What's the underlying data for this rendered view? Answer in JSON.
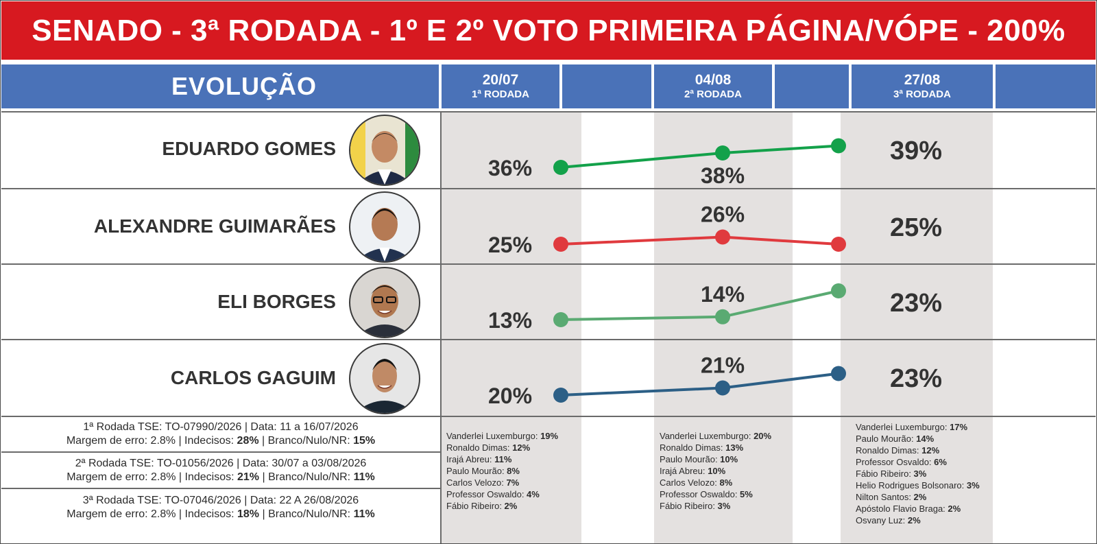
{
  "title": "SENADO - 3ª RODADA - 1º E 2º VOTO PRIMEIRA PÁGINA/VÓPE - 200%",
  "header": {
    "evolution_label": "EVOLUÇÃO",
    "rounds": [
      {
        "date": "20/07",
        "label": "1ª RODADA"
      },
      {
        "date": "04/08",
        "label": "2ª RODADA"
      },
      {
        "date": "27/08",
        "label": "3ª RODADA"
      }
    ]
  },
  "chart_data": {
    "type": "line",
    "title": "SENADO - 3ª RODADA - 1º E 2º VOTO PRIMEIRA PÁGINA/VÓPE - 200%",
    "categories": [
      "20/07",
      "04/08",
      "27/08"
    ],
    "unit": "%",
    "series": [
      {
        "name": "EDUARDO GOMES",
        "values": [
          36,
          38,
          39
        ],
        "color": "#13a14a"
      },
      {
        "name": "ALEXANDRE GUIMARÃES",
        "values": [
          25,
          26,
          25
        ],
        "color": "#e03a3e"
      },
      {
        "name": "ELI BORGES",
        "values": [
          13,
          14,
          23
        ],
        "color": "#5aaa72"
      },
      {
        "name": "CARLOS GAGUIM",
        "values": [
          20,
          21,
          23
        ],
        "color": "#2c5f86"
      }
    ],
    "labels": [
      [
        "36%",
        "38%",
        "39%"
      ],
      [
        "25%",
        "26%",
        "25%"
      ],
      [
        "13%",
        "14%",
        "23%"
      ],
      [
        "20%",
        "21%",
        "23%"
      ]
    ]
  },
  "info": [
    {
      "line1": "1ª Rodada TSE: TO-07990/2026 | Data: 11 a 16/07/2026",
      "m_label": "Margem de erro: 2.8% | Indecisos: ",
      "indecisos": "28%",
      "bn_label": " | Branco/Nulo/NR: ",
      "bn": "15%"
    },
    {
      "line1": "2ª Rodada TSE: TO-01056/2026 | Data: 30/07 a 03/08/2026",
      "m_label": "Margem de erro: 2.8% | Indecisos: ",
      "indecisos": "21%",
      "bn_label": " | Branco/Nulo/NR: ",
      "bn": "11%"
    },
    {
      "line1": "3ª Rodada TSE: TO-07046/2026 | Data: 22 A 26/08/2026",
      "m_label": "Margem de erro: 2.8% | Indecisos: ",
      "indecisos": "18%",
      "bn_label": " | Branco/Nulo/NR: ",
      "bn": "11%"
    }
  ],
  "others": [
    [
      {
        "name": "Vanderlei Luxemburgo: ",
        "value": "19%"
      },
      {
        "name": "Ronaldo Dimas: ",
        "value": "12%"
      },
      {
        "name": "Irajá Abreu: ",
        "value": "11%"
      },
      {
        "name": "Paulo Mourão: ",
        "value": "8%"
      },
      {
        "name": "Carlos Velozo: ",
        "value": "7%"
      },
      {
        "name": "Professor Oswaldo: ",
        "value": "4%"
      },
      {
        "name": "Fábio Ribeiro: ",
        "value": "2%"
      }
    ],
    [
      {
        "name": "Vanderlei Luxemburgo: ",
        "value": "20%"
      },
      {
        "name": "Ronaldo Dimas: ",
        "value": "13%"
      },
      {
        "name": "Paulo Mourão: ",
        "value": "10%"
      },
      {
        "name": "Irajá Abreu: ",
        "value": "10%"
      },
      {
        "name": "Carlos Velozo: ",
        "value": "8%"
      },
      {
        "name": "Professor Oswaldo: ",
        "value": "5%"
      },
      {
        "name": "Fábio Ribeiro: ",
        "value": "3%"
      }
    ],
    [
      {
        "name": "Vanderlei Luxemburgo: ",
        "value": "17%"
      },
      {
        "name": "Paulo Mourão: ",
        "value": "14%"
      },
      {
        "name": "Ronaldo Dimas: ",
        "value": "12%"
      },
      {
        "name": "Professor Osvaldo: ",
        "value": "6%"
      },
      {
        "name": "Fábio Ribeiro: ",
        "value": "3%"
      },
      {
        "name": "Helio Rodrigues Bolsonaro: ",
        "value": "3%"
      },
      {
        "name": "Nilton Santos: ",
        "value": "2%"
      },
      {
        "name": "Apóstolo Flavio Braga: ",
        "value": "2%"
      },
      {
        "name": "Osvany Luz: ",
        "value": "2%"
      }
    ]
  ]
}
